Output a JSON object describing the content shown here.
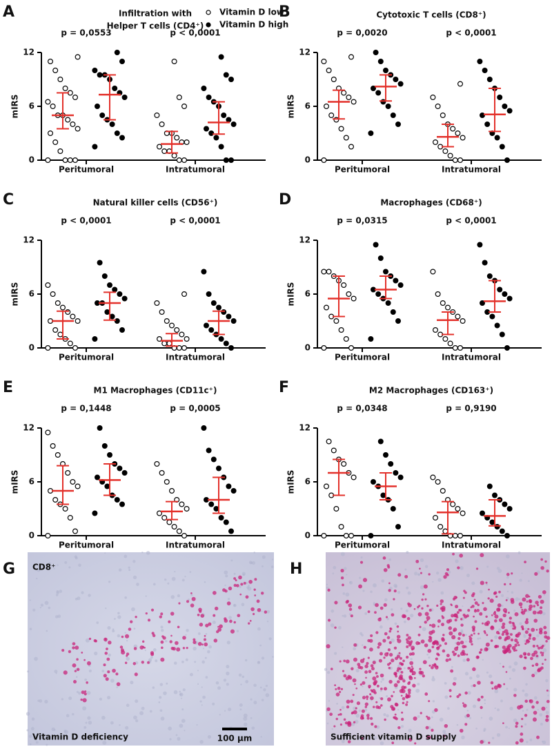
{
  "chart_data": [
    {
      "type": "dotplot",
      "panel_label": "A",
      "title": [
        "Infiltration with",
        "Helper T cells (CD4⁺)"
      ],
      "ylabel": "mIRS",
      "categories": [
        "Peritumoral",
        "Intratumoral"
      ],
      "p_values": [
        "p = 0,0553",
        "p < 0,0001"
      ],
      "ylim": [
        0,
        12
      ],
      "yticks": [
        0,
        6,
        12
      ],
      "summary_color": "#e3302a",
      "legend": "top-right",
      "series": [
        {
          "name": "Vitamin D low",
          "marker": "open",
          "color": "#000000",
          "values": [
            [
              0,
              0,
              0,
              0,
              1,
              2,
              3,
              3.5,
              4,
              4.5,
              5,
              5,
              6,
              6.5,
              7,
              7.5,
              8,
              9,
              10,
              11,
              11.5
            ],
            [
              0,
              0,
              0.5,
              1,
              1,
              1.5,
              2,
              2,
              2.5,
              3,
              3,
              4,
              5,
              6,
              7,
              11
            ]
          ],
          "median": [
            5,
            1.8
          ],
          "iqr": [
            [
              3.5,
              7.5
            ],
            [
              0.8,
              3.2
            ]
          ]
        },
        {
          "name": "Vitamin D high",
          "marker": "filled",
          "color": "#000000",
          "values": [
            [
              1.5,
              2.5,
              3,
              4,
              4.5,
              5,
              6,
              7,
              7.5,
              8,
              9,
              9.5,
              9.5,
              10,
              11,
              12
            ],
            [
              0,
              0,
              1.5,
              2.5,
              3,
              3.5,
              4,
              4.5,
              5,
              6,
              6.5,
              7,
              8,
              9,
              9.5,
              11.5
            ]
          ],
          "median": [
            7.3,
            4.2
          ],
          "iqr": [
            [
              4.5,
              9.5
            ],
            [
              2.9,
              6.5
            ]
          ]
        }
      ]
    },
    {
      "type": "dotplot",
      "panel_label": "B",
      "title": "Cytotoxic T cells (CD8⁺)",
      "ylabel": "mIRS",
      "categories": [
        "Peritumoral",
        "Intratumoral"
      ],
      "p_values": [
        "p = 0,0020",
        "p < 0,0001"
      ],
      "ylim": [
        0,
        12
      ],
      "yticks": [
        0,
        6,
        12
      ],
      "summary_color": "#e3302a",
      "series": [
        {
          "marker": "open",
          "color": "#000000",
          "values": [
            [
              0,
              1.5,
              2.5,
              3.5,
              4.5,
              5,
              6,
              6.5,
              7,
              7.5,
              8,
              9,
              10,
              11,
              11.5
            ],
            [
              0,
              0,
              0.5,
              1,
              1.5,
              2,
              2.5,
              3,
              3.5,
              4,
              5,
              6,
              7,
              8.5
            ]
          ],
          "median": [
            6.5,
            2.6
          ],
          "iqr": [
            [
              4.6,
              7.8
            ],
            [
              1.5,
              4
            ]
          ]
        },
        {
          "marker": "filled",
          "color": "#000000",
          "values": [
            [
              3,
              4,
              5,
              6,
              6.5,
              7.5,
              8,
              8.5,
              9,
              9.5,
              10,
              11,
              12
            ],
            [
              0,
              1.5,
              2.5,
              3,
              4,
              5,
              5.5,
              6,
              7,
              8,
              9,
              10,
              11
            ]
          ],
          "median": [
            8.2,
            5.1
          ],
          "iqr": [
            [
              6.6,
              9.5
            ],
            [
              3.2,
              8
            ]
          ]
        }
      ]
    },
    {
      "type": "dotplot",
      "panel_label": "C",
      "title": "Natural killer cells (CD56⁺)",
      "ylabel": "mIRS",
      "categories": [
        "Peritumoral",
        "Intratumoral"
      ],
      "p_values": [
        "p < 0,0001",
        "p < 0,0001"
      ],
      "ylim": [
        0,
        12
      ],
      "yticks": [
        0,
        6,
        12
      ],
      "summary_color": "#e3302a",
      "series": [
        {
          "marker": "open",
          "color": "#000000",
          "values": [
            [
              0,
              0,
              0.5,
              1,
              1.5,
              2,
              3,
              3,
              3.5,
              4,
              4.5,
              5,
              6,
              7
            ],
            [
              0,
              0,
              0,
              0.5,
              0.5,
              1,
              1,
              1.5,
              2,
              2.5,
              3,
              4,
              5,
              6
            ]
          ],
          "median": [
            3,
            0.8
          ],
          "iqr": [
            [
              1,
              4.1
            ],
            [
              0.2,
              1.6
            ]
          ]
        },
        {
          "marker": "filled",
          "color": "#000000",
          "values": [
            [
              1,
              2,
              3,
              3.5,
              4,
              5,
              5,
              5.5,
              6,
              6.5,
              7,
              8,
              9.5
            ],
            [
              0,
              0.5,
              1,
              1.5,
              2,
              2.5,
              3,
              3.5,
              4,
              4.5,
              5,
              6,
              8.5
            ]
          ],
          "median": [
            5,
            3
          ],
          "iqr": [
            [
              3.1,
              6.2
            ],
            [
              1.5,
              4.1
            ]
          ]
        }
      ]
    },
    {
      "type": "dotplot",
      "panel_label": "D",
      "title": "Macrophages (CD68⁺)",
      "ylabel": "mIRS",
      "categories": [
        "Peritumoral",
        "Intratumoral"
      ],
      "p_values": [
        "p = 0,0315",
        "p < 0,0001"
      ],
      "ylim": [
        0,
        12
      ],
      "yticks": [
        0,
        6,
        12
      ],
      "summary_color": "#e3302a",
      "series": [
        {
          "marker": "open",
          "color": "#000000",
          "values": [
            [
              0,
              0,
              1,
              2,
              3,
              3.5,
              4.5,
              5.5,
              6,
              7,
              7.5,
              8,
              8.5,
              8.5
            ],
            [
              0,
              0,
              0.5,
              1,
              1.5,
              2,
              3,
              3.5,
              4,
              4.5,
              5,
              6,
              8.5
            ]
          ],
          "median": [
            5.5,
            3.1
          ],
          "iqr": [
            [
              3.5,
              8
            ],
            [
              1.5,
              4
            ]
          ]
        },
        {
          "marker": "filled",
          "color": "#000000",
          "values": [
            [
              1,
              3,
              4,
              5,
              5.5,
              6,
              6.5,
              7,
              7.5,
              8,
              8.5,
              10,
              11.5
            ],
            [
              0,
              1.5,
              2.5,
              3.5,
              4,
              5,
              5.5,
              6,
              6.5,
              7.5,
              8,
              9.5,
              11.5
            ]
          ],
          "median": [
            6.5,
            5.2
          ],
          "iqr": [
            [
              5.5,
              8
            ],
            [
              4,
              7.5
            ]
          ]
        }
      ]
    },
    {
      "type": "dotplot",
      "panel_label": "E",
      "title": "M1 Macrophages (CD11c⁺)",
      "ylabel": "mIRS",
      "categories": [
        "Peritumoral",
        "Intratumoral"
      ],
      "p_values": [
        "p = 0,1448",
        "p = 0,0005"
      ],
      "ylim": [
        0,
        12
      ],
      "yticks": [
        0,
        6,
        12
      ],
      "summary_color": "#e3302a",
      "series": [
        {
          "marker": "open",
          "color": "#000000",
          "values": [
            [
              0,
              0.5,
              2,
              3,
              3.5,
              4,
              5,
              5.5,
              6,
              7,
              8,
              9,
              10,
              11.5
            ],
            [
              0,
              0.5,
              1,
              1.5,
              2,
              2.5,
              3,
              3.5,
              4,
              5,
              6,
              7,
              8
            ]
          ],
          "median": [
            5,
            2.7
          ],
          "iqr": [
            [
              3.5,
              7.8
            ],
            [
              1.8,
              3.8
            ]
          ]
        },
        {
          "marker": "filled",
          "color": "#000000",
          "values": [
            [
              2.5,
              3.5,
              4,
              4.5,
              5.5,
              6,
              6.5,
              7,
              7.5,
              8,
              9,
              10,
              12
            ],
            [
              0.5,
              1.5,
              2,
              3,
              3.5,
              4,
              5,
              5.5,
              6.5,
              7.5,
              8.5,
              9.5,
              12
            ]
          ],
          "median": [
            6.2,
            4
          ],
          "iqr": [
            [
              4.5,
              8
            ],
            [
              2.5,
              6.5
            ]
          ]
        }
      ]
    },
    {
      "type": "dotplot",
      "panel_label": "F",
      "title": "M2 Macrophages (CD163⁺)",
      "ylabel": "mIRS",
      "categories": [
        "Peritumoral",
        "Intratumoral"
      ],
      "p_values": [
        "p = 0,0348",
        "p = 0,9190"
      ],
      "ylim": [
        0,
        12
      ],
      "yticks": [
        0,
        6,
        12
      ],
      "summary_color": "#e3302a",
      "series": [
        {
          "marker": "open",
          "color": "#000000",
          "values": [
            [
              0,
              0,
              0,
              1,
              3,
              4.5,
              5.5,
              6.5,
              7,
              8,
              8.5,
              9.5,
              10.5
            ],
            [
              0,
              0,
              0,
              0.5,
              1,
              2,
              2.5,
              3,
              3.5,
              4,
              5,
              6,
              6.5
            ]
          ],
          "median": [
            7,
            2.6
          ],
          "iqr": [
            [
              4.5,
              8.5
            ],
            [
              0.2,
              3.8
            ]
          ]
        },
        {
          "marker": "filled",
          "color": "#000000",
          "values": [
            [
              0,
              1,
              3,
              4,
              4.5,
              5.5,
              6,
              6.5,
              7,
              8,
              9,
              10.5
            ],
            [
              0,
              0.5,
              1,
              1.5,
              2,
              2.5,
              3,
              3.5,
              4,
              4.5,
              5.5
            ]
          ],
          "median": [
            5.5,
            2.2
          ],
          "iqr": [
            [
              4,
              7
            ],
            [
              1.1,
              4
            ]
          ]
        }
      ]
    }
  ],
  "images": [
    {
      "panel_label": "G",
      "stain_label": "CD8⁺",
      "caption": "Vitamin D deficiency",
      "scale_label": "100 µm"
    },
    {
      "panel_label": "H",
      "caption": "Sufficient vitamin D supply"
    }
  ]
}
